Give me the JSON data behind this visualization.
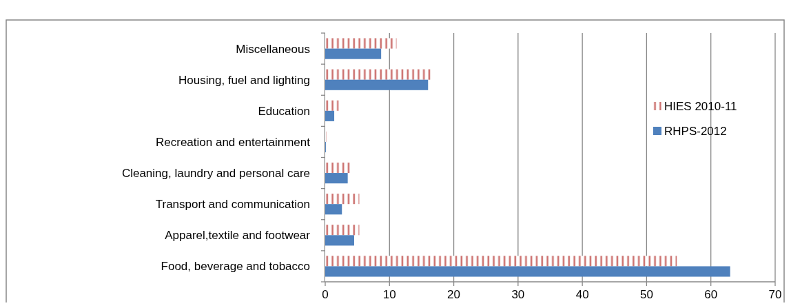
{
  "chart_data": {
    "type": "bar",
    "orientation": "horizontal",
    "categories": [
      "Miscellaneous",
      "Housing, fuel and lighting",
      "Education",
      "Recreation and entertainment",
      "Cleaning, laundry and personal care",
      "Transport and communication",
      "Apparel,textile and footwear",
      "Food, beverage and tobacco"
    ],
    "series": [
      {
        "name": "HIES 2010-11",
        "color": "#c0504d",
        "values": [
          11.1,
          16.6,
          2.1,
          0.2,
          3.9,
          5.3,
          5.3,
          54.7
        ]
      },
      {
        "name": "RHPS-2012",
        "color": "#4f81bd",
        "values": [
          8.7,
          16.0,
          1.4,
          0.1,
          3.5,
          2.6,
          4.5,
          63.0
        ]
      }
    ],
    "xlim": [
      0,
      70
    ],
    "xticks": [
      0,
      10,
      20,
      30,
      40,
      50,
      60,
      70
    ],
    "grid": "x",
    "legend": "right"
  }
}
